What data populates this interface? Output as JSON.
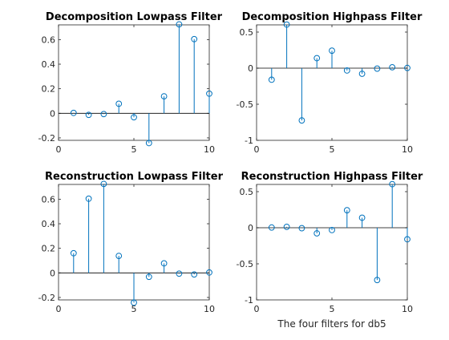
{
  "figure": {
    "footer": "The four filters for db5",
    "colors": {
      "stem": "#0072BD",
      "axis": "#262626",
      "baseline": "#000000",
      "title": "#000000"
    }
  },
  "chart_data": [
    {
      "type": "stem",
      "title": "Decomposition Lowpass Filter",
      "xlim": [
        0,
        10
      ],
      "ylim": [
        -0.22,
        0.72
      ],
      "xticks": [
        0,
        5,
        10
      ],
      "yticks": [
        -0.2,
        0,
        0.2,
        0.4,
        0.6
      ],
      "x": [
        1,
        2,
        3,
        4,
        5,
        6,
        7,
        8,
        9,
        10
      ],
      "y": [
        0.0033,
        -0.0126,
        -0.0062,
        0.0776,
        -0.0322,
        -0.2423,
        0.1384,
        0.7243,
        0.6038,
        0.1601
      ],
      "marker": "circle",
      "grid": false
    },
    {
      "type": "stem",
      "title": "Decomposition Highpass Filter",
      "xlim": [
        0,
        10
      ],
      "ylim": [
        -1,
        0.6
      ],
      "xticks": [
        0,
        5,
        10
      ],
      "yticks": [
        -1,
        -0.5,
        0,
        0.5
      ],
      "x": [
        1,
        2,
        3,
        4,
        5,
        6,
        7,
        8,
        9,
        10
      ],
      "y": [
        -0.1601,
        0.6038,
        -0.7243,
        0.1384,
        0.2423,
        -0.0322,
        -0.0776,
        -0.0062,
        0.0126,
        0.0033
      ],
      "marker": "circle",
      "grid": false
    },
    {
      "type": "stem",
      "title": "Reconstruction Lowpass Filter",
      "xlim": [
        0,
        10
      ],
      "ylim": [
        -0.22,
        0.72
      ],
      "xticks": [
        0,
        5,
        10
      ],
      "yticks": [
        -0.2,
        0,
        0.2,
        0.4,
        0.6
      ],
      "x": [
        1,
        2,
        3,
        4,
        5,
        6,
        7,
        8,
        9,
        10
      ],
      "y": [
        0.1601,
        0.6038,
        0.7243,
        0.1384,
        -0.2423,
        -0.0322,
        0.0776,
        -0.0062,
        -0.0126,
        0.0033
      ],
      "marker": "circle",
      "grid": false
    },
    {
      "type": "stem",
      "title": "Reconstruction Highpass Filter",
      "xlim": [
        0,
        10
      ],
      "ylim": [
        -1,
        0.6
      ],
      "xticks": [
        0,
        5,
        10
      ],
      "yticks": [
        -1,
        -0.5,
        0,
        0.5
      ],
      "x": [
        1,
        2,
        3,
        4,
        5,
        6,
        7,
        8,
        9,
        10
      ],
      "y": [
        0.0033,
        0.0126,
        -0.0062,
        -0.0776,
        -0.0322,
        0.2423,
        0.1384,
        -0.7243,
        0.6038,
        -0.1601
      ],
      "marker": "circle",
      "grid": false
    }
  ]
}
